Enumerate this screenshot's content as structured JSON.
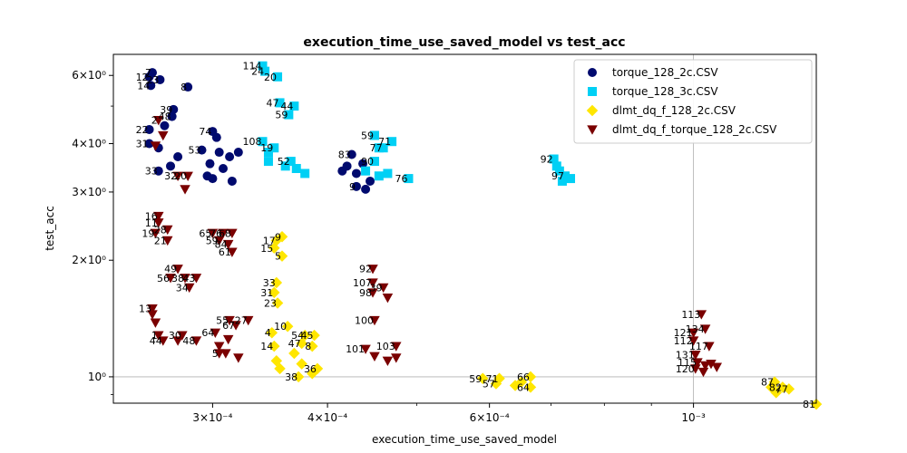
{
  "chart_data": {
    "type": "scatter",
    "title": "execution_time_use_saved_model vs test_acc",
    "xlabel": "execution_time_use_saved_model",
    "ylabel": "test_acc",
    "xscale": "log",
    "yscale": "log",
    "xlim": [
      0.000234,
      0.00136
    ],
    "ylim": [
      0.855,
      6.8
    ],
    "grid": "reference lines at x=1e-3 and y=1",
    "legend_position": "top-right",
    "x_ticks": [
      {
        "value": 0.0003,
        "label": "3×10⁻⁴"
      },
      {
        "value": 0.0004,
        "label": "4×10⁻⁴"
      },
      {
        "value": 0.0006,
        "label": "6×10⁻⁴"
      },
      {
        "value": 0.001,
        "label": "10⁻³"
      }
    ],
    "y_ticks": [
      {
        "value": 1,
        "label": "10⁰"
      },
      {
        "value": 2,
        "label": "2×10⁰"
      },
      {
        "value": 3,
        "label": "3×10⁰"
      },
      {
        "value": 4,
        "label": "4×10⁰"
      },
      {
        "value": 6,
        "label": "6×10⁰"
      }
    ],
    "series": [
      {
        "name": "torque_128_2c.CSV",
        "marker": "circle",
        "color": "#000a6e",
        "points": [
          {
            "label": "7",
            "x": 0.000258,
            "y": 6.1
          },
          {
            "label": "12",
            "x": 0.000256,
            "y": 5.95
          },
          {
            "label": "23",
            "x": 0.000263,
            "y": 5.85
          },
          {
            "label": "14",
            "x": 0.000257,
            "y": 5.65
          },
          {
            "label": "8",
            "x": 0.000282,
            "y": 5.6
          },
          {
            "label": "39",
            "x": 0.000272,
            "y": 4.9
          },
          {
            "label": "48",
            "x": 0.000271,
            "y": 4.7
          },
          {
            "label": "22",
            "x": 0.000256,
            "y": 4.35
          },
          {
            "label": "",
            "x": 0.000266,
            "y": 4.45
          },
          {
            "label": "31",
            "x": 0.000256,
            "y": 4.0
          },
          {
            "label": "",
            "x": 0.000262,
            "y": 3.9
          },
          {
            "label": "",
            "x": 0.000275,
            "y": 3.7
          },
          {
            "label": "33",
            "x": 0.000262,
            "y": 3.4
          },
          {
            "label": "",
            "x": 0.00027,
            "y": 3.5
          },
          {
            "label": "74",
            "x": 0.0003,
            "y": 4.3
          },
          {
            "label": "",
            "x": 0.000303,
            "y": 4.15
          },
          {
            "label": "53",
            "x": 0.000292,
            "y": 3.85
          },
          {
            "label": "",
            "x": 0.000305,
            "y": 3.8
          },
          {
            "label": "",
            "x": 0.000313,
            "y": 3.7
          },
          {
            "label": "",
            "x": 0.000298,
            "y": 3.55
          },
          {
            "label": "",
            "x": 0.000308,
            "y": 3.45
          },
          {
            "label": "",
            "x": 0.000296,
            "y": 3.3
          },
          {
            "label": "",
            "x": 0.000315,
            "y": 3.2
          },
          {
            "label": "",
            "x": 0.00032,
            "y": 3.8
          },
          {
            "label": "",
            "x": 0.0003,
            "y": 3.25
          },
          {
            "label": "83",
            "x": 0.000425,
            "y": 3.75
          },
          {
            "label": "",
            "x": 0.00042,
            "y": 3.5
          },
          {
            "label": "",
            "x": 0.00043,
            "y": 3.35
          },
          {
            "label": "",
            "x": 0.000437,
            "y": 3.55
          },
          {
            "label": "",
            "x": 0.000445,
            "y": 3.2
          },
          {
            "label": "9",
            "x": 0.00043,
            "y": 3.1
          },
          {
            "label": "",
            "x": 0.00044,
            "y": 3.05
          },
          {
            "label": "",
            "x": 0.000415,
            "y": 3.4
          }
        ]
      },
      {
        "name": "torque_128_3c.CSV",
        "marker": "square",
        "color": "#00d0f5",
        "points": [
          {
            "label": "114",
            "x": 0.00034,
            "y": 6.35
          },
          {
            "label": "24",
            "x": 0.000342,
            "y": 6.15
          },
          {
            "label": "20",
            "x": 0.000353,
            "y": 5.95
          },
          {
            "label": "47",
            "x": 0.000355,
            "y": 5.1
          },
          {
            "label": "44",
            "x": 0.000368,
            "y": 5.0
          },
          {
            "label": "59",
            "x": 0.000363,
            "y": 4.75
          },
          {
            "label": "108",
            "x": 0.00034,
            "y": 4.05
          },
          {
            "label": "19",
            "x": 0.00035,
            "y": 3.9
          },
          {
            "label": "",
            "x": 0.000345,
            "y": 3.8
          },
          {
            "label": "",
            "x": 0.000345,
            "y": 3.6
          },
          {
            "label": "52",
            "x": 0.000365,
            "y": 3.6
          },
          {
            "label": "",
            "x": 0.00037,
            "y": 3.45
          },
          {
            "label": "",
            "x": 0.000378,
            "y": 3.35
          },
          {
            "label": "",
            "x": 0.00036,
            "y": 3.5
          },
          {
            "label": "59",
            "x": 0.00045,
            "y": 4.2
          },
          {
            "label": "71",
            "x": 0.00047,
            "y": 4.05
          },
          {
            "label": "",
            "x": 0.000455,
            "y": 3.9
          },
          {
            "label": "77",
            "x": 0.00046,
            "y": 3.9
          },
          {
            "label": "90",
            "x": 0.00045,
            "y": 3.6
          },
          {
            "label": "",
            "x": 0.00044,
            "y": 3.4
          },
          {
            "label": "",
            "x": 0.000455,
            "y": 3.3
          },
          {
            "label": "",
            "x": 0.000465,
            "y": 3.35
          },
          {
            "label": "76",
            "x": 0.00049,
            "y": 3.25
          },
          {
            "label": "92",
            "x": 0.000705,
            "y": 3.65
          },
          {
            "label": "",
            "x": 0.00071,
            "y": 3.5
          },
          {
            "label": "",
            "x": 0.000715,
            "y": 3.4
          },
          {
            "label": "97",
            "x": 0.000725,
            "y": 3.3
          },
          {
            "label": "",
            "x": 0.00072,
            "y": 3.2
          },
          {
            "label": "",
            "x": 0.000735,
            "y": 3.25
          }
        ]
      },
      {
        "name": "dlmt_dq_f_128_2c.CSV",
        "marker": "diamond",
        "color": "#ffe600",
        "points": [
          {
            "label": "9",
            "x": 0.000357,
            "y": 2.3
          },
          {
            "label": "17",
            "x": 0.000352,
            "y": 2.25
          },
          {
            "label": "15",
            "x": 0.00035,
            "y": 2.15
          },
          {
            "label": "5",
            "x": 0.000357,
            "y": 2.05
          },
          {
            "label": "33",
            "x": 0.000352,
            "y": 1.75
          },
          {
            "label": "31",
            "x": 0.00035,
            "y": 1.65
          },
          {
            "label": "23",
            "x": 0.000353,
            "y": 1.55
          },
          {
            "label": "10",
            "x": 0.000362,
            "y": 1.35
          },
          {
            "label": "4",
            "x": 0.000348,
            "y": 1.3
          },
          {
            "label": "54",
            "x": 0.000378,
            "y": 1.28
          },
          {
            "label": "45",
            "x": 0.000387,
            "y": 1.28
          },
          {
            "label": "47",
            "x": 0.000375,
            "y": 1.22
          },
          {
            "label": "8",
            "x": 0.000385,
            "y": 1.2
          },
          {
            "label": "14",
            "x": 0.00035,
            "y": 1.2
          },
          {
            "label": "",
            "x": 0.000368,
            "y": 1.15
          },
          {
            "label": "",
            "x": 0.000352,
            "y": 1.1
          },
          {
            "label": "",
            "x": 0.000375,
            "y": 1.08
          },
          {
            "label": "",
            "x": 0.000355,
            "y": 1.05
          },
          {
            "label": "36",
            "x": 0.00039,
            "y": 1.05
          },
          {
            "label": "38",
            "x": 0.000372,
            "y": 1.0
          },
          {
            "label": "",
            "x": 0.000385,
            "y": 1.02
          },
          {
            "label": "59",
            "x": 0.00059,
            "y": 0.99
          },
          {
            "label": "71",
            "x": 0.000615,
            "y": 0.99
          },
          {
            "label": "66",
            "x": 0.000665,
            "y": 1.0
          },
          {
            "label": "57",
            "x": 0.00061,
            "y": 0.96
          },
          {
            "label": "",
            "x": 0.00064,
            "y": 0.95
          },
          {
            "label": "64",
            "x": 0.000665,
            "y": 0.94
          },
          {
            "label": "",
            "x": 0.00065,
            "y": 0.97
          },
          {
            "label": "87",
            "x": 0.001225,
            "y": 0.97
          },
          {
            "label": "82",
            "x": 0.00125,
            "y": 0.94
          },
          {
            "label": "77",
            "x": 0.00127,
            "y": 0.93
          },
          {
            "label": "",
            "x": 0.001215,
            "y": 0.94
          },
          {
            "label": "",
            "x": 0.00123,
            "y": 0.91
          },
          {
            "label": "81",
            "x": 0.00136,
            "y": 0.85
          }
        ]
      },
      {
        "name": "dlmt_dq_f_torque_128_2c.CSV",
        "marker": "triangle-down",
        "color": "#7a0000",
        "points": [
          {
            "label": "2",
            "x": 0.000262,
            "y": 4.6
          },
          {
            "label": "",
            "x": 0.000265,
            "y": 4.2
          },
          {
            "label": "",
            "x": 0.00026,
            "y": 3.95
          },
          {
            "label": "32",
            "x": 0.000275,
            "y": 3.3
          },
          {
            "label": "20",
            "x": 0.000282,
            "y": 3.3
          },
          {
            "label": "",
            "x": 0.00028,
            "y": 3.05
          },
          {
            "label": "16",
            "x": 0.000262,
            "y": 2.6
          },
          {
            "label": "11",
            "x": 0.000262,
            "y": 2.5
          },
          {
            "label": "28",
            "x": 0.000268,
            "y": 2.4
          },
          {
            "label": "19",
            "x": 0.00026,
            "y": 2.35
          },
          {
            "label": "21",
            "x": 0.000268,
            "y": 2.25
          },
          {
            "label": "65",
            "x": 0.0003,
            "y": 2.35
          },
          {
            "label": "76",
            "x": 0.000308,
            "y": 2.35
          },
          {
            "label": "68",
            "x": 0.000315,
            "y": 2.35
          },
          {
            "label": "59",
            "x": 0.000305,
            "y": 2.25
          },
          {
            "label": "84",
            "x": 0.000312,
            "y": 2.2
          },
          {
            "label": "61",
            "x": 0.000315,
            "y": 2.1
          },
          {
            "label": "49",
            "x": 0.000275,
            "y": 1.9
          },
          {
            "label": "56",
            "x": 0.00027,
            "y": 1.8
          },
          {
            "label": "38",
            "x": 0.00028,
            "y": 1.8
          },
          {
            "label": "43",
            "x": 0.000288,
            "y": 1.8
          },
          {
            "label": "34",
            "x": 0.000283,
            "y": 1.7
          },
          {
            "label": "13",
            "x": 0.000258,
            "y": 1.5
          },
          {
            "label": "",
            "x": 0.000258,
            "y": 1.45
          },
          {
            "label": "",
            "x": 0.00026,
            "y": 1.38
          },
          {
            "label": "1",
            "x": 0.000262,
            "y": 1.28
          },
          {
            "label": "30",
            "x": 0.000278,
            "y": 1.28
          },
          {
            "label": "48",
            "x": 0.000288,
            "y": 1.24
          },
          {
            "label": "44",
            "x": 0.000265,
            "y": 1.24
          },
          {
            "label": "",
            "x": 0.000275,
            "y": 1.24
          },
          {
            "label": "55",
            "x": 0.000313,
            "y": 1.4
          },
          {
            "label": "27",
            "x": 0.000328,
            "y": 1.4
          },
          {
            "label": "67",
            "x": 0.000318,
            "y": 1.36
          },
          {
            "label": "64",
            "x": 0.000302,
            "y": 1.3
          },
          {
            "label": "",
            "x": 0.000312,
            "y": 1.25
          },
          {
            "label": "",
            "x": 0.000305,
            "y": 1.2
          },
          {
            "label": "",
            "x": 0.00031,
            "y": 1.15
          },
          {
            "label": "5",
            "x": 0.000305,
            "y": 1.15
          },
          {
            "label": "",
            "x": 0.00032,
            "y": 1.12
          },
          {
            "label": "92",
            "x": 0.000448,
            "y": 1.9
          },
          {
            "label": "107",
            "x": 0.000448,
            "y": 1.75
          },
          {
            "label": "39",
            "x": 0.00046,
            "y": 1.7
          },
          {
            "label": "98",
            "x": 0.000448,
            "y": 1.65
          },
          {
            "label": "",
            "x": 0.000465,
            "y": 1.6
          },
          {
            "label": "100",
            "x": 0.00045,
            "y": 1.4
          },
          {
            "label": "103",
            "x": 0.000475,
            "y": 1.2
          },
          {
            "label": "101",
            "x": 0.00044,
            "y": 1.18
          },
          {
            "label": "",
            "x": 0.00045,
            "y": 1.13
          },
          {
            "label": "",
            "x": 0.000465,
            "y": 1.1
          },
          {
            "label": "",
            "x": 0.000475,
            "y": 1.12
          },
          {
            "label": "113",
            "x": 0.00102,
            "y": 1.45
          },
          {
            "label": "134",
            "x": 0.00103,
            "y": 1.33
          },
          {
            "label": "121",
            "x": 0.001,
            "y": 1.3
          },
          {
            "label": "112",
            "x": 0.001,
            "y": 1.24
          },
          {
            "label": "117",
            "x": 0.00104,
            "y": 1.2
          },
          {
            "label": "131",
            "x": 0.001005,
            "y": 1.14
          },
          {
            "label": "115",
            "x": 0.00101,
            "y": 1.09
          },
          {
            "label": "",
            "x": 0.00103,
            "y": 1.07
          },
          {
            "label": "120",
            "x": 0.001005,
            "y": 1.05
          },
          {
            "label": "",
            "x": 0.001045,
            "y": 1.08
          },
          {
            "label": "",
            "x": 0.00106,
            "y": 1.06
          },
          {
            "label": "",
            "x": 0.001025,
            "y": 1.03
          }
        ]
      }
    ]
  }
}
